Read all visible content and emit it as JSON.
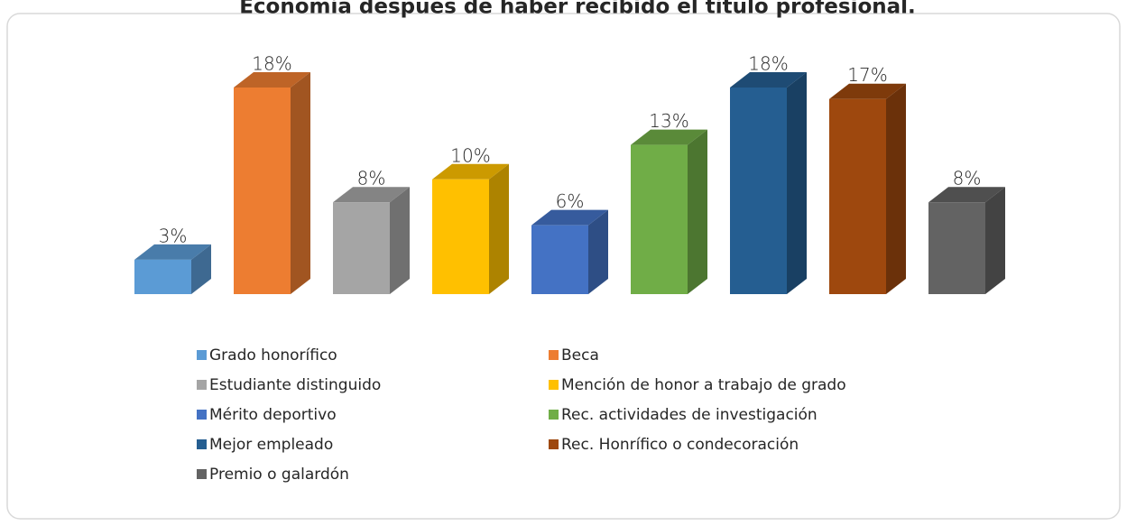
{
  "chart_data": {
    "type": "bar3d",
    "title": "Economía después de haber recibido el título profesional.",
    "categories": [
      "Grado honorífico",
      "Beca",
      "Estudiante distinguido",
      "Mención de honor a trabajo de grado",
      "Mérito deportivo",
      "Rec. actividades de investigación",
      "Mejor empleado",
      "Rec. Honrífico o condecoración",
      "Premio o galardón"
    ],
    "values": [
      3,
      18,
      8,
      10,
      6,
      13,
      18,
      17,
      8
    ],
    "value_labels": [
      "3%",
      "18%",
      "8%",
      "10%",
      "6%",
      "13%",
      "18%",
      "17%",
      "8%"
    ],
    "colors": [
      "#5b9bd5",
      "#ed7d31",
      "#a5a5a5",
      "#ffc000",
      "#4472c4",
      "#70ad47",
      "#255e91",
      "#9e480e",
      "#636363"
    ],
    "legend": "bottom"
  }
}
